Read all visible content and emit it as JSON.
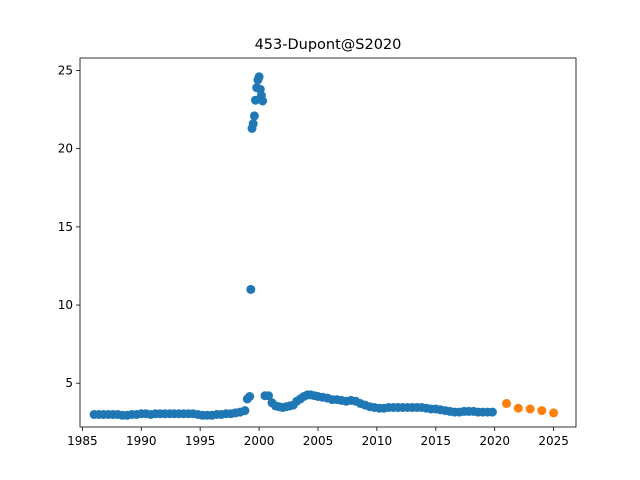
{
  "chart_data": {
    "type": "scatter",
    "title": "453-Dupont@S2020",
    "xlabel": "",
    "ylabel": "",
    "xlim": [
      1984.8,
      2026.9
    ],
    "ylim": [
      2.2,
      25.8
    ],
    "x_ticks": [
      1985,
      1990,
      1995,
      2000,
      2005,
      2010,
      2015,
      2020,
      2025
    ],
    "y_ticks": [
      5,
      10,
      15,
      20,
      25
    ],
    "grid": false,
    "legend": "none",
    "series": [
      {
        "color": "#1f77b4",
        "points": [
          [
            1986.0,
            3.0
          ],
          [
            1986.4,
            3.0
          ],
          [
            1986.8,
            3.0
          ],
          [
            1987.2,
            3.0
          ],
          [
            1987.6,
            3.0
          ],
          [
            1988.0,
            3.0
          ],
          [
            1988.4,
            2.95
          ],
          [
            1988.8,
            2.95
          ],
          [
            1989.2,
            3.0
          ],
          [
            1989.6,
            3.0
          ],
          [
            1990.0,
            3.05
          ],
          [
            1990.4,
            3.05
          ],
          [
            1990.8,
            3.0
          ],
          [
            1991.2,
            3.05
          ],
          [
            1991.6,
            3.05
          ],
          [
            1992.0,
            3.05
          ],
          [
            1992.4,
            3.05
          ],
          [
            1992.8,
            3.05
          ],
          [
            1993.2,
            3.05
          ],
          [
            1993.6,
            3.05
          ],
          [
            1994.0,
            3.05
          ],
          [
            1994.4,
            3.05
          ],
          [
            1994.8,
            3.0
          ],
          [
            1995.2,
            2.95
          ],
          [
            1995.6,
            2.95
          ],
          [
            1996.0,
            2.95
          ],
          [
            1996.4,
            3.0
          ],
          [
            1996.8,
            3.0
          ],
          [
            1997.2,
            3.05
          ],
          [
            1997.6,
            3.05
          ],
          [
            1998.0,
            3.1
          ],
          [
            1998.4,
            3.15
          ],
          [
            1998.8,
            3.25
          ],
          [
            1999.0,
            4.0
          ],
          [
            1999.2,
            4.15
          ],
          [
            1999.3,
            11.0
          ],
          [
            1999.4,
            21.3
          ],
          [
            1999.5,
            21.6
          ],
          [
            1999.6,
            22.1
          ],
          [
            1999.7,
            23.1
          ],
          [
            1999.8,
            23.9
          ],
          [
            1999.9,
            24.4
          ],
          [
            2000.0,
            24.6
          ],
          [
            2000.1,
            23.8
          ],
          [
            2000.2,
            23.4
          ],
          [
            2000.3,
            23.05
          ],
          [
            2000.5,
            4.2
          ],
          [
            2000.8,
            4.2
          ],
          [
            2001.1,
            3.75
          ],
          [
            2001.4,
            3.55
          ],
          [
            2001.7,
            3.5
          ],
          [
            2002.0,
            3.45
          ],
          [
            2002.3,
            3.5
          ],
          [
            2002.6,
            3.55
          ],
          [
            2002.9,
            3.6
          ],
          [
            2003.2,
            3.85
          ],
          [
            2003.5,
            4.0
          ],
          [
            2003.8,
            4.15
          ],
          [
            2004.1,
            4.25
          ],
          [
            2004.4,
            4.25
          ],
          [
            2004.7,
            4.2
          ],
          [
            2005.0,
            4.15
          ],
          [
            2005.4,
            4.1
          ],
          [
            2005.8,
            4.05
          ],
          [
            2006.2,
            3.95
          ],
          [
            2006.6,
            3.95
          ],
          [
            2007.0,
            3.9
          ],
          [
            2007.4,
            3.85
          ],
          [
            2007.8,
            3.9
          ],
          [
            2008.2,
            3.85
          ],
          [
            2008.6,
            3.7
          ],
          [
            2009.0,
            3.6
          ],
          [
            2009.4,
            3.5
          ],
          [
            2009.8,
            3.45
          ],
          [
            2010.2,
            3.4
          ],
          [
            2010.6,
            3.4
          ],
          [
            2011.0,
            3.45
          ],
          [
            2011.4,
            3.45
          ],
          [
            2011.8,
            3.45
          ],
          [
            2012.2,
            3.45
          ],
          [
            2012.6,
            3.45
          ],
          [
            2013.0,
            3.45
          ],
          [
            2013.4,
            3.45
          ],
          [
            2013.8,
            3.45
          ],
          [
            2014.2,
            3.4
          ],
          [
            2014.6,
            3.35
          ],
          [
            2015.0,
            3.35
          ],
          [
            2015.4,
            3.3
          ],
          [
            2015.8,
            3.25
          ],
          [
            2016.2,
            3.2
          ],
          [
            2016.6,
            3.15
          ],
          [
            2017.0,
            3.15
          ],
          [
            2017.4,
            3.2
          ],
          [
            2017.8,
            3.2
          ],
          [
            2018.2,
            3.2
          ],
          [
            2018.6,
            3.15
          ],
          [
            2019.0,
            3.15
          ],
          [
            2019.4,
            3.15
          ],
          [
            2019.8,
            3.15
          ]
        ]
      },
      {
        "color": "#ff7f0e",
        "points": [
          [
            2021.0,
            3.7
          ],
          [
            2022.0,
            3.4
          ],
          [
            2023.0,
            3.35
          ],
          [
            2024.0,
            3.25
          ],
          [
            2025.0,
            3.1
          ]
        ]
      }
    ]
  }
}
